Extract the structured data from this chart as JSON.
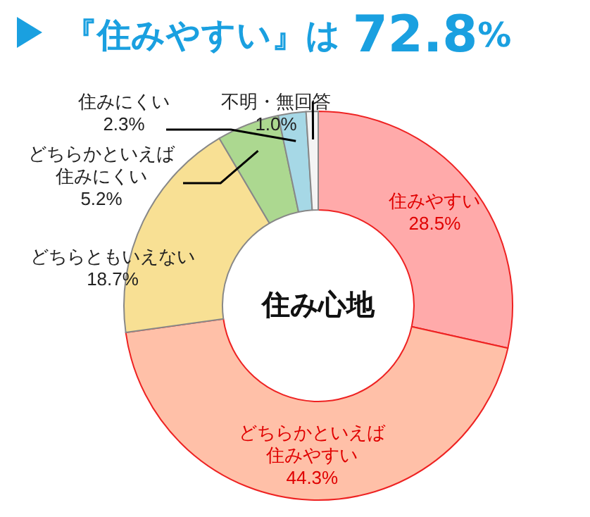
{
  "chart_data": {
    "type": "donut",
    "title": "『住みやすい』は 72.8%",
    "categories": [
      "住みやすい",
      "どちらかといえば住みやすい",
      "どちらともいえない",
      "どちらかといえば住みにくい",
      "住みにくい",
      "不明・無回答"
    ],
    "values": [
      28.5,
      44.3,
      18.7,
      5.2,
      2.3,
      1.0
    ],
    "value_labels": [
      "28.5%",
      "44.3%",
      "18.7%",
      "5.2%",
      "2.3%",
      "1.0%"
    ],
    "colors": [
      "#ffaaaa",
      "#ffc0a8",
      "#f8e094",
      "#acd890",
      "#a6d8e6",
      "#f4f4f4"
    ],
    "annotations": [
      "住み心地"
    ]
  }
}
